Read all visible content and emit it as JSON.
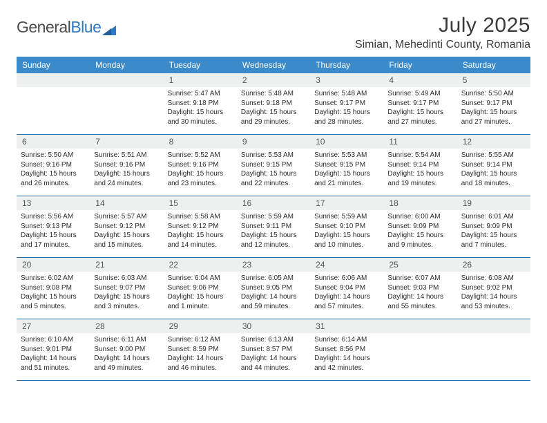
{
  "logo": {
    "part1": "General",
    "part2": "Blue"
  },
  "title": "July 2025",
  "location": "Simian, Mehedinti County, Romania",
  "colors": {
    "header_bg": "#3b8bca",
    "header_text": "#ffffff",
    "daynum_bg": "#eef0f0",
    "week_border": "#2f6fa8",
    "logo_gray": "#4a4a4a",
    "logo_blue": "#2f79c2"
  },
  "weekdays": [
    "Sunday",
    "Monday",
    "Tuesday",
    "Wednesday",
    "Thursday",
    "Friday",
    "Saturday"
  ],
  "weeks": [
    [
      {
        "n": "",
        "sr": "",
        "ss": "",
        "dl": ""
      },
      {
        "n": "",
        "sr": "",
        "ss": "",
        "dl": ""
      },
      {
        "n": "1",
        "sr": "Sunrise: 5:47 AM",
        "ss": "Sunset: 9:18 PM",
        "dl": "Daylight: 15 hours and 30 minutes."
      },
      {
        "n": "2",
        "sr": "Sunrise: 5:48 AM",
        "ss": "Sunset: 9:18 PM",
        "dl": "Daylight: 15 hours and 29 minutes."
      },
      {
        "n": "3",
        "sr": "Sunrise: 5:48 AM",
        "ss": "Sunset: 9:17 PM",
        "dl": "Daylight: 15 hours and 28 minutes."
      },
      {
        "n": "4",
        "sr": "Sunrise: 5:49 AM",
        "ss": "Sunset: 9:17 PM",
        "dl": "Daylight: 15 hours and 27 minutes."
      },
      {
        "n": "5",
        "sr": "Sunrise: 5:50 AM",
        "ss": "Sunset: 9:17 PM",
        "dl": "Daylight: 15 hours and 27 minutes."
      }
    ],
    [
      {
        "n": "6",
        "sr": "Sunrise: 5:50 AM",
        "ss": "Sunset: 9:16 PM",
        "dl": "Daylight: 15 hours and 26 minutes."
      },
      {
        "n": "7",
        "sr": "Sunrise: 5:51 AM",
        "ss": "Sunset: 9:16 PM",
        "dl": "Daylight: 15 hours and 24 minutes."
      },
      {
        "n": "8",
        "sr": "Sunrise: 5:52 AM",
        "ss": "Sunset: 9:16 PM",
        "dl": "Daylight: 15 hours and 23 minutes."
      },
      {
        "n": "9",
        "sr": "Sunrise: 5:53 AM",
        "ss": "Sunset: 9:15 PM",
        "dl": "Daylight: 15 hours and 22 minutes."
      },
      {
        "n": "10",
        "sr": "Sunrise: 5:53 AM",
        "ss": "Sunset: 9:15 PM",
        "dl": "Daylight: 15 hours and 21 minutes."
      },
      {
        "n": "11",
        "sr": "Sunrise: 5:54 AM",
        "ss": "Sunset: 9:14 PM",
        "dl": "Daylight: 15 hours and 19 minutes."
      },
      {
        "n": "12",
        "sr": "Sunrise: 5:55 AM",
        "ss": "Sunset: 9:14 PM",
        "dl": "Daylight: 15 hours and 18 minutes."
      }
    ],
    [
      {
        "n": "13",
        "sr": "Sunrise: 5:56 AM",
        "ss": "Sunset: 9:13 PM",
        "dl": "Daylight: 15 hours and 17 minutes."
      },
      {
        "n": "14",
        "sr": "Sunrise: 5:57 AM",
        "ss": "Sunset: 9:12 PM",
        "dl": "Daylight: 15 hours and 15 minutes."
      },
      {
        "n": "15",
        "sr": "Sunrise: 5:58 AM",
        "ss": "Sunset: 9:12 PM",
        "dl": "Daylight: 15 hours and 14 minutes."
      },
      {
        "n": "16",
        "sr": "Sunrise: 5:59 AM",
        "ss": "Sunset: 9:11 PM",
        "dl": "Daylight: 15 hours and 12 minutes."
      },
      {
        "n": "17",
        "sr": "Sunrise: 5:59 AM",
        "ss": "Sunset: 9:10 PM",
        "dl": "Daylight: 15 hours and 10 minutes."
      },
      {
        "n": "18",
        "sr": "Sunrise: 6:00 AM",
        "ss": "Sunset: 9:09 PM",
        "dl": "Daylight: 15 hours and 9 minutes."
      },
      {
        "n": "19",
        "sr": "Sunrise: 6:01 AM",
        "ss": "Sunset: 9:09 PM",
        "dl": "Daylight: 15 hours and 7 minutes."
      }
    ],
    [
      {
        "n": "20",
        "sr": "Sunrise: 6:02 AM",
        "ss": "Sunset: 9:08 PM",
        "dl": "Daylight: 15 hours and 5 minutes."
      },
      {
        "n": "21",
        "sr": "Sunrise: 6:03 AM",
        "ss": "Sunset: 9:07 PM",
        "dl": "Daylight: 15 hours and 3 minutes."
      },
      {
        "n": "22",
        "sr": "Sunrise: 6:04 AM",
        "ss": "Sunset: 9:06 PM",
        "dl": "Daylight: 15 hours and 1 minute."
      },
      {
        "n": "23",
        "sr": "Sunrise: 6:05 AM",
        "ss": "Sunset: 9:05 PM",
        "dl": "Daylight: 14 hours and 59 minutes."
      },
      {
        "n": "24",
        "sr": "Sunrise: 6:06 AM",
        "ss": "Sunset: 9:04 PM",
        "dl": "Daylight: 14 hours and 57 minutes."
      },
      {
        "n": "25",
        "sr": "Sunrise: 6:07 AM",
        "ss": "Sunset: 9:03 PM",
        "dl": "Daylight: 14 hours and 55 minutes."
      },
      {
        "n": "26",
        "sr": "Sunrise: 6:08 AM",
        "ss": "Sunset: 9:02 PM",
        "dl": "Daylight: 14 hours and 53 minutes."
      }
    ],
    [
      {
        "n": "27",
        "sr": "Sunrise: 6:10 AM",
        "ss": "Sunset: 9:01 PM",
        "dl": "Daylight: 14 hours and 51 minutes."
      },
      {
        "n": "28",
        "sr": "Sunrise: 6:11 AM",
        "ss": "Sunset: 9:00 PM",
        "dl": "Daylight: 14 hours and 49 minutes."
      },
      {
        "n": "29",
        "sr": "Sunrise: 6:12 AM",
        "ss": "Sunset: 8:59 PM",
        "dl": "Daylight: 14 hours and 46 minutes."
      },
      {
        "n": "30",
        "sr": "Sunrise: 6:13 AM",
        "ss": "Sunset: 8:57 PM",
        "dl": "Daylight: 14 hours and 44 minutes."
      },
      {
        "n": "31",
        "sr": "Sunrise: 6:14 AM",
        "ss": "Sunset: 8:56 PM",
        "dl": "Daylight: 14 hours and 42 minutes."
      },
      {
        "n": "",
        "sr": "",
        "ss": "",
        "dl": ""
      },
      {
        "n": "",
        "sr": "",
        "ss": "",
        "dl": ""
      }
    ]
  ]
}
